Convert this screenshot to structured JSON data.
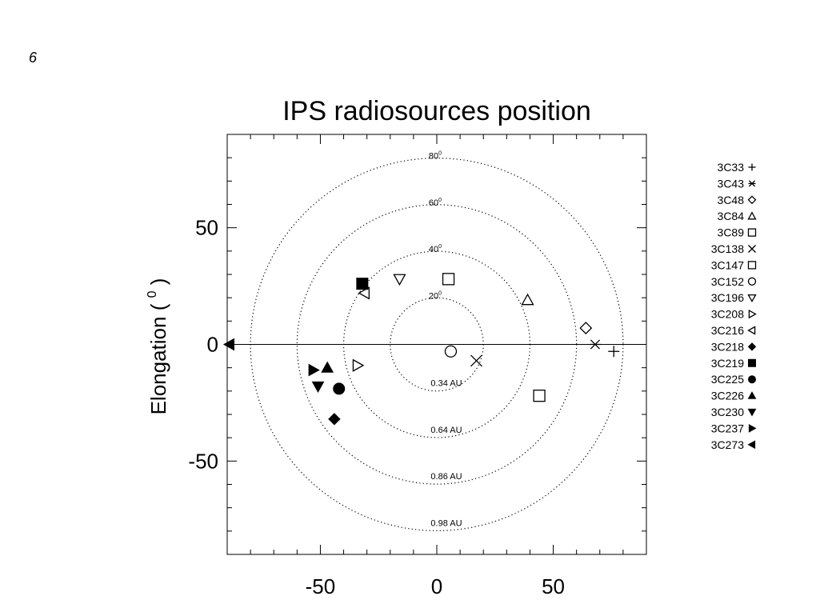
{
  "corner_mark": "6",
  "chart_data": {
    "type": "scatter",
    "title": "IPS radiosources position",
    "ylabel": "Elongation (°)",
    "ylabel_main": "Elongation (",
    "ylabel_sup": "0",
    "ylabel_close": ")",
    "xlabel": "",
    "xlim": [
      -90,
      90
    ],
    "ylim": [
      -90,
      90
    ],
    "x_ticks": [
      -50,
      0,
      50
    ],
    "y_ticks": [
      -50,
      0,
      50
    ],
    "grid": false,
    "legend_position": "right",
    "reference_line_y": 0,
    "circles": [
      {
        "radius": 20,
        "elongation_label": "20",
        "distance_label": "0.34 AU"
      },
      {
        "radius": 40,
        "elongation_label": "40",
        "distance_label": "0.64 AU"
      },
      {
        "radius": 60,
        "elongation_label": "60",
        "distance_label": "0.86 AU"
      },
      {
        "radius": 80,
        "elongation_label": "80",
        "distance_label": "0.98 AU"
      }
    ],
    "series": [
      {
        "name": "3C33",
        "symbol": "plus",
        "x": 76,
        "y": -3
      },
      {
        "name": "3C43",
        "symbol": "asterisk",
        "x": 68,
        "y": 0
      },
      {
        "name": "3C48",
        "symbol": "diamond-open",
        "x": 64,
        "y": 7
      },
      {
        "name": "3C84",
        "symbol": "triangle-up-open",
        "x": 39,
        "y": 19
      },
      {
        "name": "3C89",
        "symbol": "square-open",
        "x": 44,
        "y": -22
      },
      {
        "name": "3C138",
        "symbol": "cross",
        "x": 17,
        "y": -7
      },
      {
        "name": "3C147",
        "symbol": "square-open",
        "x": 5,
        "y": 28
      },
      {
        "name": "3C152",
        "symbol": "circle-open",
        "x": 6,
        "y": -3
      },
      {
        "name": "3C196",
        "symbol": "triangle-down-open",
        "x": -16,
        "y": 28
      },
      {
        "name": "3C208",
        "symbol": "triangle-right-open",
        "x": -34,
        "y": -9
      },
      {
        "name": "3C216",
        "symbol": "triangle-left-open",
        "x": -31,
        "y": 22
      },
      {
        "name": "3C218",
        "symbol": "diamond-filled",
        "x": -44,
        "y": -32
      },
      {
        "name": "3C219",
        "symbol": "square-filled",
        "x": -32,
        "y": 26
      },
      {
        "name": "3C225",
        "symbol": "circle-filled",
        "x": -42,
        "y": -19
      },
      {
        "name": "3C226",
        "symbol": "triangle-up-filled",
        "x": -47,
        "y": -10
      },
      {
        "name": "3C230",
        "symbol": "triangle-down-filled",
        "x": -51,
        "y": -18
      },
      {
        "name": "3C237",
        "symbol": "triangle-right-filled",
        "x": -53,
        "y": -11
      },
      {
        "name": "3C273",
        "symbol": "triangle-left-filled",
        "x": -89,
        "y": 0
      }
    ]
  }
}
